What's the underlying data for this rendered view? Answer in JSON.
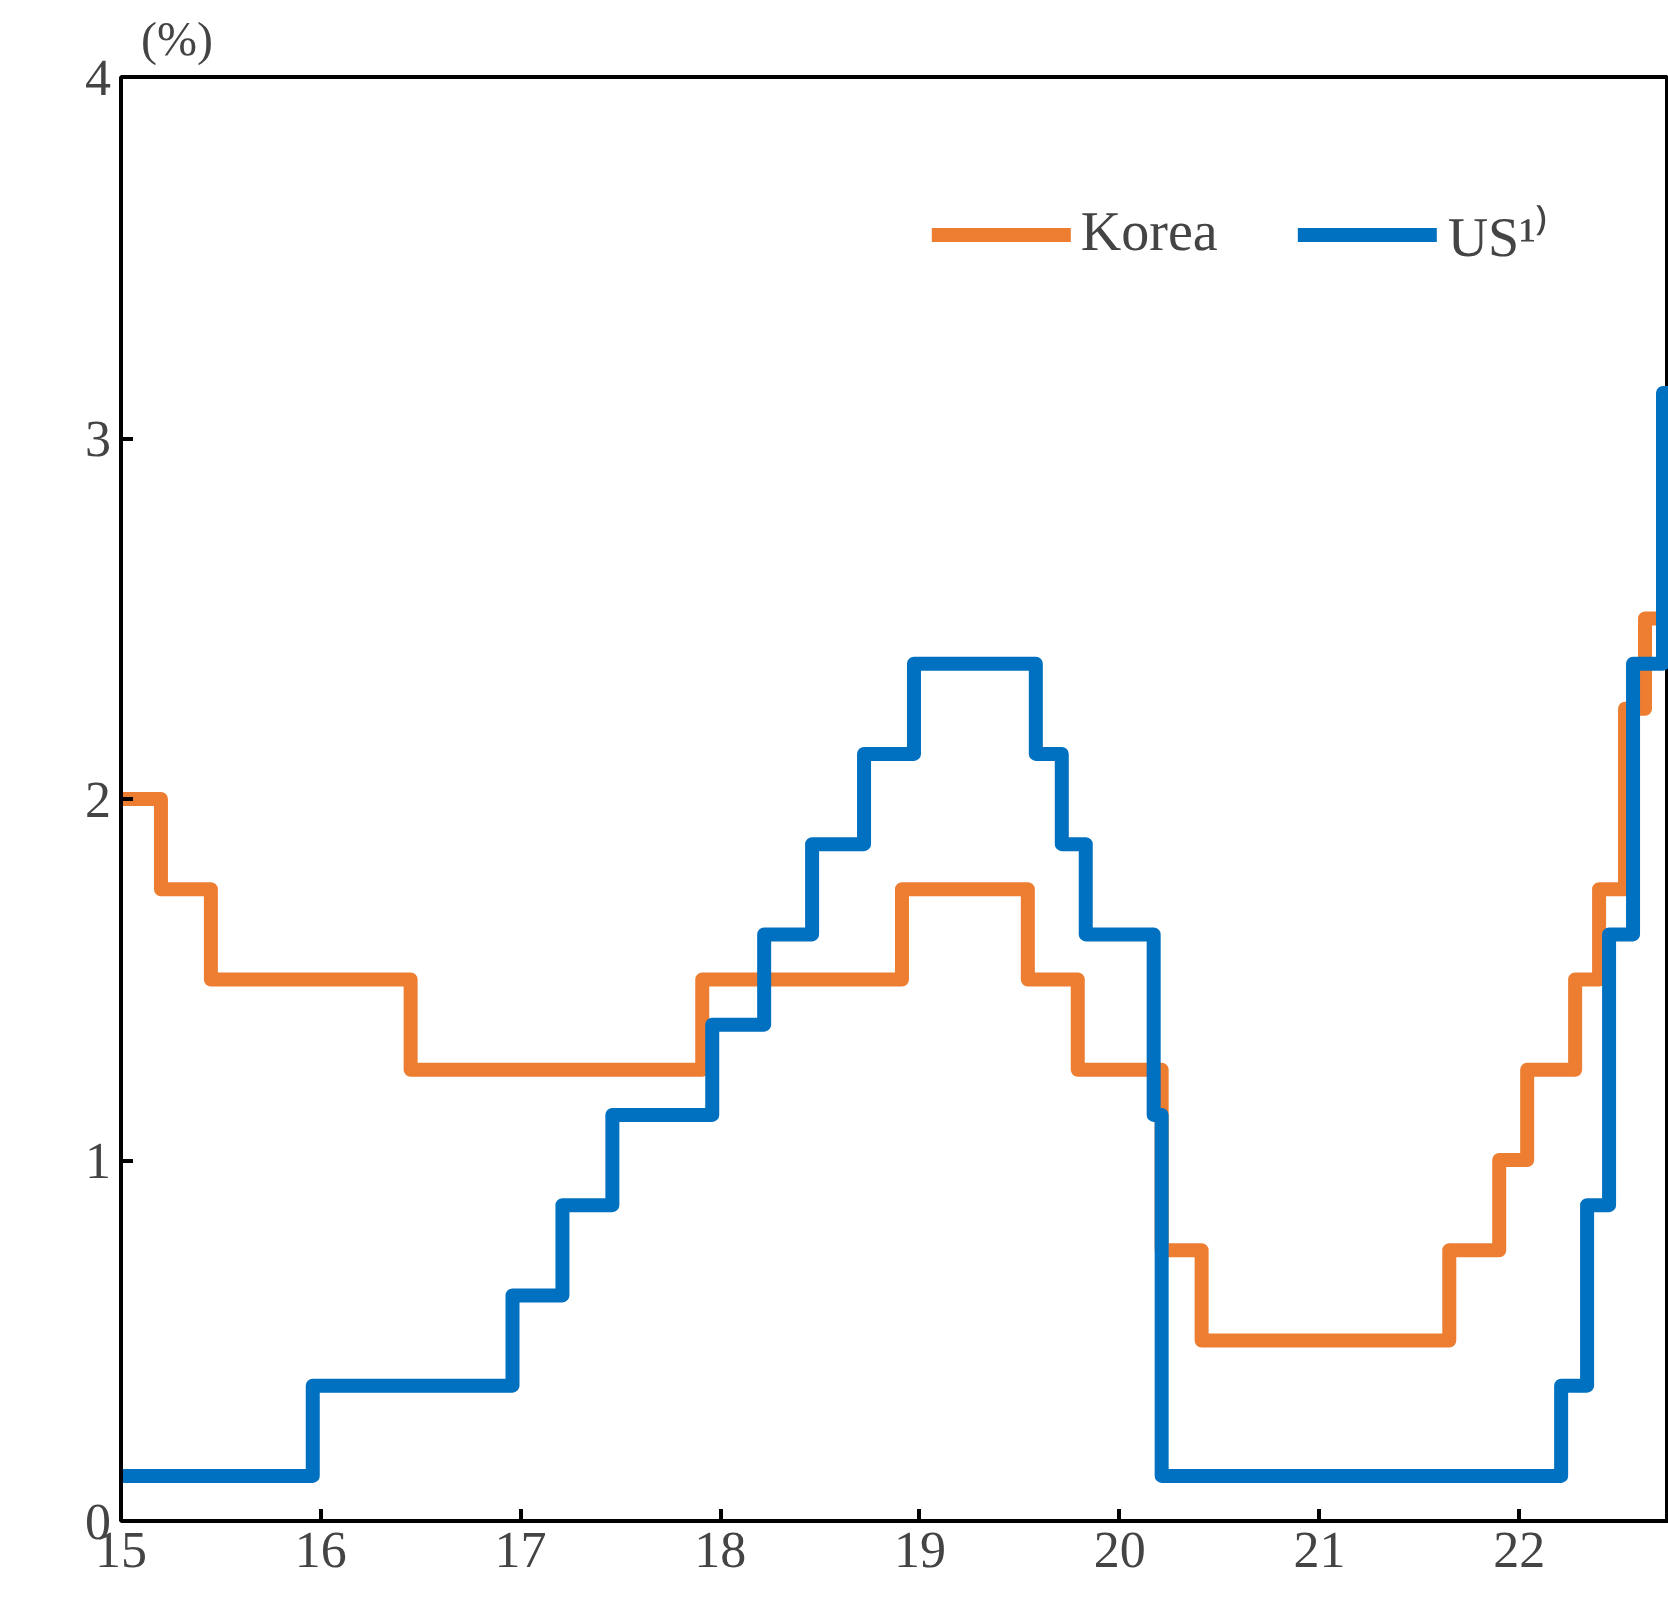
{
  "chart_data": {
    "type": "step",
    "ylabel": "(%)",
    "xlim": [
      15,
      22.75
    ],
    "ylim": [
      0,
      4
    ],
    "xticks": [
      15,
      16,
      17,
      18,
      19,
      20,
      21,
      22
    ],
    "yticks": [
      0,
      1,
      2,
      3,
      4
    ],
    "grid": false,
    "legend": "top right",
    "series": [
      {
        "name": "Korea",
        "color": "#ed7d31",
        "x": [
          15.0,
          15.2,
          15.45,
          16.45,
          17.91,
          18.91,
          19.54,
          19.79,
          20.21,
          20.41,
          21.65,
          21.9,
          22.04,
          22.28,
          22.4,
          22.53,
          22.63,
          22.75
        ],
        "values": [
          2.0,
          1.75,
          1.5,
          1.25,
          1.5,
          1.75,
          1.5,
          1.25,
          0.75,
          0.5,
          0.75,
          1.0,
          1.25,
          1.5,
          1.75,
          2.25,
          2.5,
          2.5
        ]
      },
      {
        "name": "US¹⁾",
        "color": "#0070c0",
        "x": [
          15.0,
          15.96,
          16.96,
          17.21,
          17.46,
          17.96,
          18.22,
          18.46,
          18.72,
          18.97,
          19.58,
          19.71,
          19.83,
          20.17,
          20.21,
          22.21,
          22.34,
          22.45,
          22.57,
          22.72,
          22.75
        ],
        "values": [
          0.125,
          0.375,
          0.625,
          0.875,
          1.125,
          1.375,
          1.625,
          1.875,
          2.125,
          2.375,
          2.125,
          1.875,
          1.625,
          1.125,
          0.125,
          0.375,
          0.875,
          1.625,
          2.375,
          3.125,
          3.125
        ]
      }
    ]
  }
}
